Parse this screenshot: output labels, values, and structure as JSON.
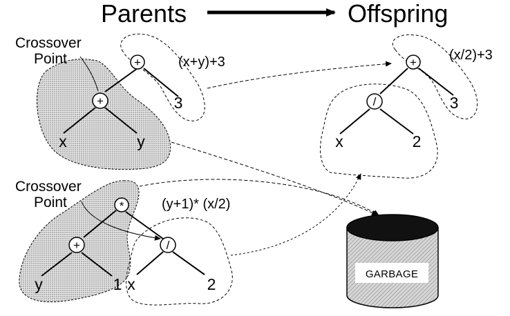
{
  "header": {
    "parents": "Parents",
    "offspring": "Offspring"
  },
  "crossover_label_1": {
    "line1": "Crossover",
    "line2": "Point"
  },
  "crossover_label_2": {
    "line1": "Crossover",
    "line2": "Point"
  },
  "parent1": {
    "expression": "(x+y)+3",
    "root_op": "+",
    "sub_op": "+",
    "leaf_a": "x",
    "leaf_b": "y",
    "leaf_c": "3"
  },
  "parent2": {
    "expression": "(y+1)* (x/2)",
    "root_op": "*",
    "sub_op_left": "+",
    "sub_op_right": "/",
    "leaf_a": "y",
    "leaf_b": "1",
    "leaf_c": "x",
    "leaf_d": "2"
  },
  "offspring": {
    "expression": "(x/2)+3",
    "root_op": "+",
    "sub_op": "/",
    "leaf_a": "x",
    "leaf_b": "2",
    "leaf_c": "3"
  },
  "garbage": {
    "label": "GARBAGE"
  },
  "colors": {
    "ink": "#000000",
    "shade": "#cfcfcf",
    "background": "#ffffff"
  }
}
